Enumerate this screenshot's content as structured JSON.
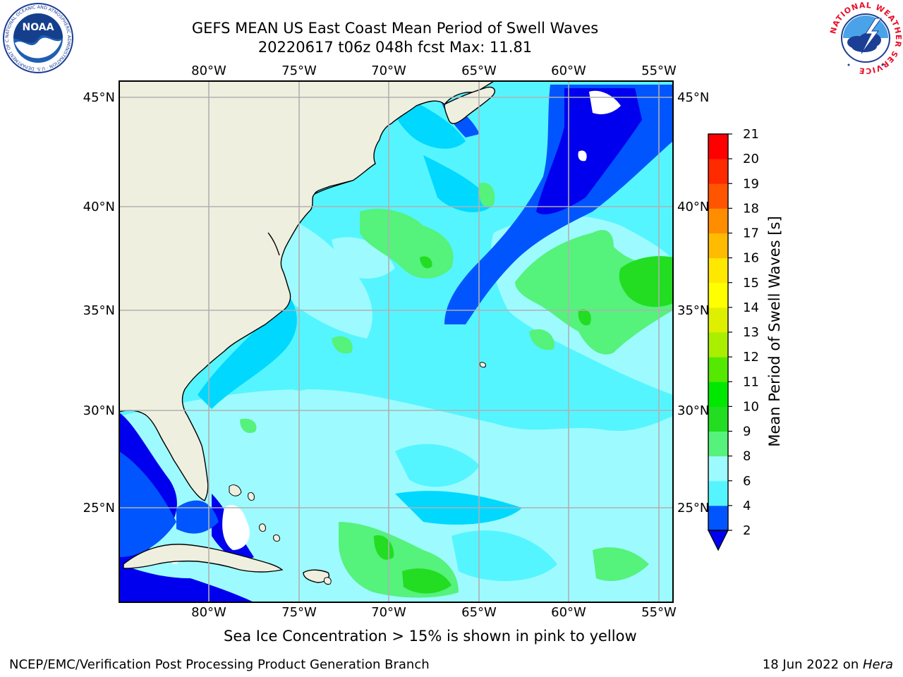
{
  "header": {
    "title_line1": "GEFS MEAN US East Coast Mean Period of Swell Waves",
    "title_line2": "20220617 t06z 048h fcst   Max: 11.81"
  },
  "logos": {
    "noaa_text": "NOAA",
    "noaa_ring_text": "NATIONAL OCEANIC AND ATMOSPHERIC ADMINISTRATION · U.S. DEPARTMENT OF COMMERCE",
    "nws_ring_text": "NATIONAL WEATHER SERVICE"
  },
  "map": {
    "lon_labels": [
      "80°W",
      "75°W",
      "70°W",
      "65°W",
      "60°W",
      "55°W"
    ],
    "lat_labels": [
      "45°N",
      "40°N",
      "35°N",
      "30°N",
      "25°N"
    ]
  },
  "colorbar": {
    "label": "Mean Period of Swell Waves [s]",
    "ticks": [
      "2",
      "4",
      "6",
      "8",
      "9",
      "10",
      "11",
      "12",
      "13",
      "14",
      "15",
      "16",
      "17",
      "18",
      "19",
      "20",
      "21"
    ],
    "colors": [
      "#0055ff",
      "#00d8ff",
      "#55f5ff",
      "#9dfbff",
      "#55f27c",
      "#22dd22",
      "#00e800",
      "#55e800",
      "#aaee00",
      "#dfef00",
      "#ffff00",
      "#ffe800",
      "#ffbb00",
      "#ff8d00",
      "#ff5500",
      "#ff2a00",
      "#ff0000"
    ],
    "under_color": "#0000ee"
  },
  "notes": {
    "ice": "Sea Ice Concentration > 15% is shown in pink to yellow"
  },
  "footer": {
    "left": "NCEP/EMC/Verification Post Processing Product Generation Branch",
    "right_date": "18 Jun 2022 on ",
    "right_machine": "Hera"
  }
}
